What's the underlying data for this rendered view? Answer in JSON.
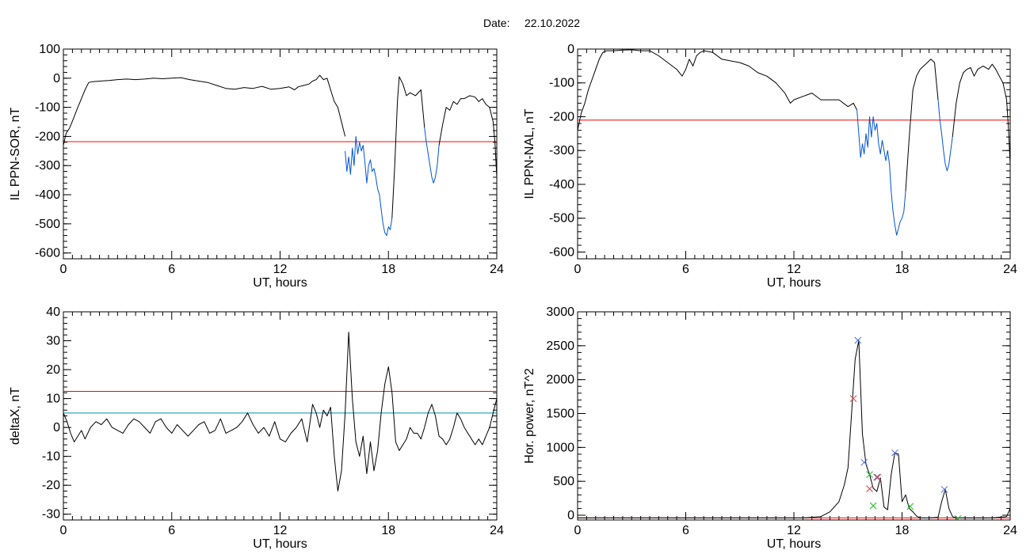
{
  "header": {
    "date_label": "Date:",
    "date_value": "22.10.2022"
  },
  "chart_data": [
    {
      "id": "top-left",
      "type": "line",
      "xlabel": "UT, hours",
      "ylabel": "IL PPN-SOR, nT",
      "xlim": [
        0,
        24
      ],
      "ylim": [
        -620,
        100
      ],
      "xticks": [
        0,
        6,
        12,
        18,
        24
      ],
      "xtick_labels": [
        "0",
        "6",
        "12",
        "18",
        "24"
      ],
      "yticks": [
        100,
        0,
        -100,
        -200,
        -300,
        -400,
        -500,
        -600
      ],
      "ytick_labels": [
        "100",
        "0",
        "-100",
        "-200",
        "-300",
        "-400",
        "-500",
        "-600"
      ],
      "hlines": [
        {
          "y": -218,
          "color": "#ff0000"
        }
      ],
      "series": [
        {
          "color": "#000000",
          "x": [
            0,
            0.15,
            0.35,
            0.55,
            0.8,
            1.0,
            1.2,
            1.4,
            1.6,
            2.0,
            2.5,
            3.0,
            3.5,
            4.0,
            4.5,
            5.0,
            5.5,
            6.0,
            6.5,
            7.0,
            7.5,
            8.0,
            8.5,
            9.0,
            9.5,
            10.0,
            10.5,
            11.0,
            11.5,
            12.0,
            12.5,
            12.8,
            13.0,
            13.3,
            13.6,
            13.8,
            14.0,
            14.2,
            14.4,
            14.6,
            14.8,
            15.0,
            15.2,
            15.4,
            15.6
          ],
          "y": [
            -230,
            -190,
            -170,
            -140,
            -100,
            -70,
            -40,
            -15,
            -12,
            -10,
            -8,
            -5,
            -3,
            -5,
            -3,
            0,
            -2,
            0,
            2,
            -5,
            -10,
            -15,
            -25,
            -35,
            -38,
            -32,
            -35,
            -28,
            -38,
            -35,
            -30,
            -40,
            -30,
            -25,
            -20,
            -10,
            -5,
            10,
            -5,
            0,
            -40,
            -80,
            -100,
            -150,
            -200
          ]
        },
        {
          "color": "#0055d4",
          "x": [
            15.6,
            15.7,
            15.8,
            15.9,
            16.0,
            16.1,
            16.2,
            16.3,
            16.4,
            16.5,
            16.6,
            16.7,
            16.8,
            16.9,
            17.0,
            17.1,
            17.2,
            17.3,
            17.4,
            17.5,
            17.6,
            17.7,
            17.8,
            17.9,
            18.0,
            18.1,
            18.2
          ],
          "y": [
            -250,
            -320,
            -270,
            -330,
            -240,
            -300,
            -200,
            -260,
            -220,
            -250,
            -230,
            -290,
            -360,
            -300,
            -280,
            -320,
            -310,
            -340,
            -380,
            -400,
            -450,
            -500,
            -530,
            -540,
            -510,
            -520,
            -480
          ]
        },
        {
          "color": "#000000",
          "x": [
            18.2,
            18.35,
            18.5,
            18.6,
            18.8,
            19.0,
            19.2,
            19.5,
            19.8,
            20.0
          ],
          "y": [
            -480,
            -300,
            -80,
            5,
            -20,
            -60,
            -50,
            -60,
            -40,
            -170
          ]
        },
        {
          "color": "#0055d4",
          "x": [
            20.0,
            20.1,
            20.2,
            20.3,
            20.4,
            20.5,
            20.6,
            20.7,
            20.8
          ],
          "y": [
            -170,
            -220,
            -260,
            -300,
            -340,
            -360,
            -340,
            -300,
            -230
          ]
        },
        {
          "color": "#000000",
          "x": [
            20.8,
            21.0,
            21.2,
            21.4,
            21.6,
            21.8,
            22.0,
            22.2,
            22.5,
            22.8,
            23.0,
            23.2,
            23.4,
            23.6,
            23.8,
            23.9,
            24.0
          ],
          "y": [
            -230,
            -160,
            -100,
            -110,
            -80,
            -90,
            -70,
            -70,
            -60,
            -65,
            -80,
            -70,
            -90,
            -100,
            -150,
            -220,
            -340
          ]
        }
      ]
    },
    {
      "id": "top-right",
      "type": "line",
      "xlabel": "UT, hours",
      "ylabel": "IL PPN-NAL, nT",
      "xlim": [
        0,
        24
      ],
      "ylim": [
        -620,
        0
      ],
      "xticks": [
        0,
        6,
        12,
        18,
        24
      ],
      "xtick_labels": [
        "0",
        "6",
        "12",
        "18",
        "24"
      ],
      "yticks": [
        0,
        -100,
        -200,
        -300,
        -400,
        -500,
        -600
      ],
      "ytick_labels": [
        "0",
        "-100",
        "-200",
        "-300",
        "-400",
        "-500",
        "-600"
      ],
      "hlines": [
        {
          "y": -210,
          "color": "#ff0000"
        }
      ],
      "series": [
        {
          "color": "#000000",
          "x": [
            0,
            0.2,
            0.4,
            0.6,
            0.8,
            1.0,
            1.2,
            1.4,
            1.6,
            2.0,
            2.5,
            3.0,
            3.5,
            4.0,
            4.5,
            5.0,
            5.5,
            5.8,
            6.0,
            6.2,
            6.4,
            6.6,
            6.8,
            7.0,
            7.5,
            8.0,
            8.5,
            9.0,
            9.5,
            10.0,
            10.5,
            11.0,
            11.5,
            11.8,
            12.0,
            12.5,
            13.0,
            13.5,
            14.0,
            14.5,
            15.0,
            15.3,
            15.5
          ],
          "y": [
            -240,
            -190,
            -160,
            -120,
            -90,
            -60,
            -30,
            -10,
            -5,
            -5,
            -3,
            -2,
            -5,
            -5,
            -20,
            -40,
            -60,
            -80,
            -60,
            -30,
            -50,
            -20,
            -10,
            -5,
            -10,
            -30,
            -35,
            -40,
            -50,
            -70,
            -80,
            -100,
            -130,
            -160,
            -150,
            -140,
            -130,
            -150,
            -150,
            -150,
            -170,
            -160,
            -180
          ]
        },
        {
          "color": "#0055d4",
          "x": [
            15.5,
            15.6,
            15.7,
            15.8,
            15.9,
            16.0,
            16.1,
            16.2,
            16.3,
            16.4,
            16.5,
            16.6,
            16.7,
            16.8,
            16.9,
            17.0,
            17.1,
            17.2,
            17.3,
            17.4,
            17.5,
            17.6,
            17.7,
            17.8,
            17.9,
            18.0,
            18.1,
            18.2
          ],
          "y": [
            -180,
            -250,
            -320,
            -280,
            -310,
            -250,
            -290,
            -200,
            -260,
            -200,
            -240,
            -220,
            -280,
            -310,
            -270,
            -300,
            -330,
            -300,
            -340,
            -420,
            -480,
            -520,
            -550,
            -530,
            -510,
            -500,
            -480,
            -420
          ]
        },
        {
          "color": "#000000",
          "x": [
            18.2,
            18.4,
            18.6,
            18.8,
            19.0,
            19.2,
            19.4,
            19.6,
            19.8,
            20.0
          ],
          "y": [
            -420,
            -260,
            -120,
            -80,
            -60,
            -50,
            -40,
            -30,
            -40,
            -150
          ]
        },
        {
          "color": "#0055d4",
          "x": [
            20.0,
            20.1,
            20.2,
            20.3,
            20.4,
            20.5,
            20.6,
            20.7,
            20.8
          ],
          "y": [
            -150,
            -210,
            -250,
            -300,
            -340,
            -360,
            -340,
            -300,
            -260
          ]
        },
        {
          "color": "#000000",
          "x": [
            20.8,
            21.0,
            21.2,
            21.4,
            21.6,
            21.8,
            22.0,
            22.2,
            22.5,
            22.8,
            23.0,
            23.2,
            23.4,
            23.6,
            23.8,
            23.9,
            24.0
          ],
          "y": [
            -260,
            -160,
            -100,
            -70,
            -60,
            -55,
            -80,
            -60,
            -50,
            -60,
            -45,
            -60,
            -80,
            -100,
            -150,
            -230,
            -340
          ]
        }
      ]
    },
    {
      "id": "bottom-left",
      "type": "line",
      "xlabel": "UT, hours",
      "ylabel": "deltaX, nT",
      "xlim": [
        0,
        24
      ],
      "ylim": [
        -32,
        40
      ],
      "xticks": [
        0,
        6,
        12,
        18,
        24
      ],
      "xtick_labels": [
        "0",
        "6",
        "12",
        "18",
        "24"
      ],
      "yticks": [
        40,
        30,
        20,
        10,
        0,
        -10,
        -20,
        -30
      ],
      "ytick_labels": [
        "40",
        "30",
        "20",
        "10",
        "0",
        "-10",
        "-20",
        "-30"
      ],
      "hlines": [
        {
          "y": 12.5,
          "color": "#ff0000"
        },
        {
          "y": 5,
          "color": "#0090b0"
        }
      ],
      "series": [
        {
          "color": "#000000",
          "x": [
            0,
            0.2,
            0.4,
            0.6,
            0.8,
            1.0,
            1.2,
            1.5,
            1.8,
            2.1,
            2.4,
            2.7,
            3.0,
            3.3,
            3.6,
            3.9,
            4.2,
            4.5,
            4.8,
            5.1,
            5.4,
            5.7,
            6.0,
            6.3,
            6.6,
            6.9,
            7.2,
            7.5,
            7.8,
            8.1,
            8.4,
            8.7,
            9.0,
            9.3,
            9.6,
            9.9,
            10.2,
            10.5,
            10.8,
            11.1,
            11.4,
            11.7,
            12.0,
            12.3,
            12.6,
            12.9,
            13.2,
            13.5,
            13.8,
            14.0,
            14.2,
            14.4,
            14.6,
            14.8,
            15.0,
            15.2,
            15.4,
            15.6,
            15.8,
            16.0,
            16.2,
            16.4,
            16.6,
            16.8,
            17.0,
            17.2,
            17.4,
            17.6,
            17.8,
            18.0,
            18.2,
            18.4,
            18.6,
            18.8,
            19.0,
            19.2,
            19.4,
            19.6,
            19.8,
            20.0,
            20.2,
            20.4,
            20.6,
            20.8,
            21.0,
            21.2,
            21.4,
            21.6,
            21.8,
            22.0,
            22.2,
            22.4,
            22.6,
            22.8,
            23.0,
            23.2,
            23.4,
            23.6,
            23.8,
            24.0
          ],
          "y": [
            5,
            2,
            -2,
            -5,
            -3,
            -1,
            -4,
            0,
            2,
            1,
            3,
            0,
            -1,
            -2,
            1,
            3,
            2,
            0,
            -2,
            2,
            3,
            0,
            -2,
            1,
            -1,
            -3,
            -1,
            1,
            2,
            -2,
            -1,
            3,
            -2,
            -1,
            0,
            2,
            5,
            1,
            -2,
            0,
            -3,
            2,
            -4,
            -5,
            -2,
            0,
            3,
            -5,
            8,
            5,
            0,
            6,
            4,
            7,
            -10,
            -22,
            -15,
            5,
            33,
            10,
            -5,
            -10,
            -3,
            -16,
            -5,
            -15,
            -8,
            5,
            15,
            21,
            12,
            -5,
            -8,
            -6,
            -4,
            0,
            -2,
            -2,
            -4,
            0,
            5,
            8,
            4,
            -3,
            -4,
            -6,
            -4,
            0,
            5,
            3,
            0,
            -2,
            -4,
            -6,
            -4,
            -6,
            -3,
            0,
            5,
            10
          ]
        }
      ]
    },
    {
      "id": "bottom-right",
      "type": "line",
      "xlabel": "UT, hours",
      "ylabel": "Hor. power, nT^2",
      "xlim": [
        0,
        24
      ],
      "ylim": [
        -70,
        3000
      ],
      "xticks": [
        0,
        6,
        12,
        18,
        24
      ],
      "xtick_labels": [
        "0",
        "6",
        "12",
        "18",
        "24"
      ],
      "yticks": [
        3000,
        2500,
        2000,
        1500,
        1000,
        500,
        0
      ],
      "ytick_labels": [
        "3000",
        "2500",
        "2000",
        "1500",
        "1000",
        "500",
        "0"
      ],
      "hlines": [
        {
          "y": -40,
          "color": "#ff0000"
        }
      ],
      "series": [
        {
          "color": "#000000",
          "x": [
            0,
            1,
            2,
            3,
            4,
            5,
            6,
            7,
            8,
            9,
            10,
            11,
            12,
            12.5,
            13.0,
            13.5,
            14.0,
            14.5,
            14.8,
            15.0,
            15.2,
            15.4,
            15.6,
            15.8,
            16.0,
            16.2,
            16.4,
            16.6,
            16.8,
            17.0,
            17.2,
            17.4,
            17.6,
            17.8,
            18.0,
            18.2,
            18.4,
            18.6,
            18.8,
            19.0,
            19.5,
            20.0,
            20.2,
            20.4,
            20.6,
            20.8,
            21.0,
            22.0,
            23.0,
            23.8,
            24.0
          ],
          "y": [
            -40,
            -40,
            -40,
            -40,
            -40,
            -40,
            -40,
            -40,
            -40,
            -40,
            -40,
            -40,
            -40,
            -40,
            -30,
            -20,
            50,
            200,
            450,
            700,
            1500,
            2300,
            2580,
            1200,
            750,
            600,
            400,
            350,
            550,
            120,
            80,
            600,
            920,
            900,
            200,
            300,
            100,
            50,
            -10,
            -40,
            -40,
            -30,
            200,
            380,
            100,
            -20,
            -40,
            -40,
            -40,
            -20,
            100
          ]
        }
      ],
      "markers": [
        {
          "x": 15.55,
          "y": 2580,
          "color": "#4a6ee0",
          "symbol": "x"
        },
        {
          "x": 15.3,
          "y": 1720,
          "color": "#e04040",
          "symbol": "x"
        },
        {
          "x": 15.9,
          "y": 780,
          "color": "#4a6ee0",
          "symbol": "x"
        },
        {
          "x": 16.2,
          "y": 390,
          "color": "#e04040",
          "symbol": "x"
        },
        {
          "x": 16.6,
          "y": 560,
          "color": "#4a6ee0",
          "symbol": "x"
        },
        {
          "x": 16.65,
          "y": 560,
          "color": "#e04040",
          "symbol": "x"
        },
        {
          "x": 17.6,
          "y": 920,
          "color": "#4a6ee0",
          "symbol": "x"
        },
        {
          "x": 20.35,
          "y": 380,
          "color": "#4a6ee0",
          "symbol": "x"
        },
        {
          "x": 16.2,
          "y": 600,
          "color": "#22bb22",
          "symbol": "x"
        },
        {
          "x": 16.4,
          "y": 140,
          "color": "#22bb22",
          "symbol": "x"
        },
        {
          "x": 18.45,
          "y": 130,
          "color": "#22bb22",
          "symbol": "x"
        },
        {
          "x": 21.1,
          "y": -50,
          "color": "#22bb22",
          "symbol": "x"
        }
      ]
    }
  ]
}
